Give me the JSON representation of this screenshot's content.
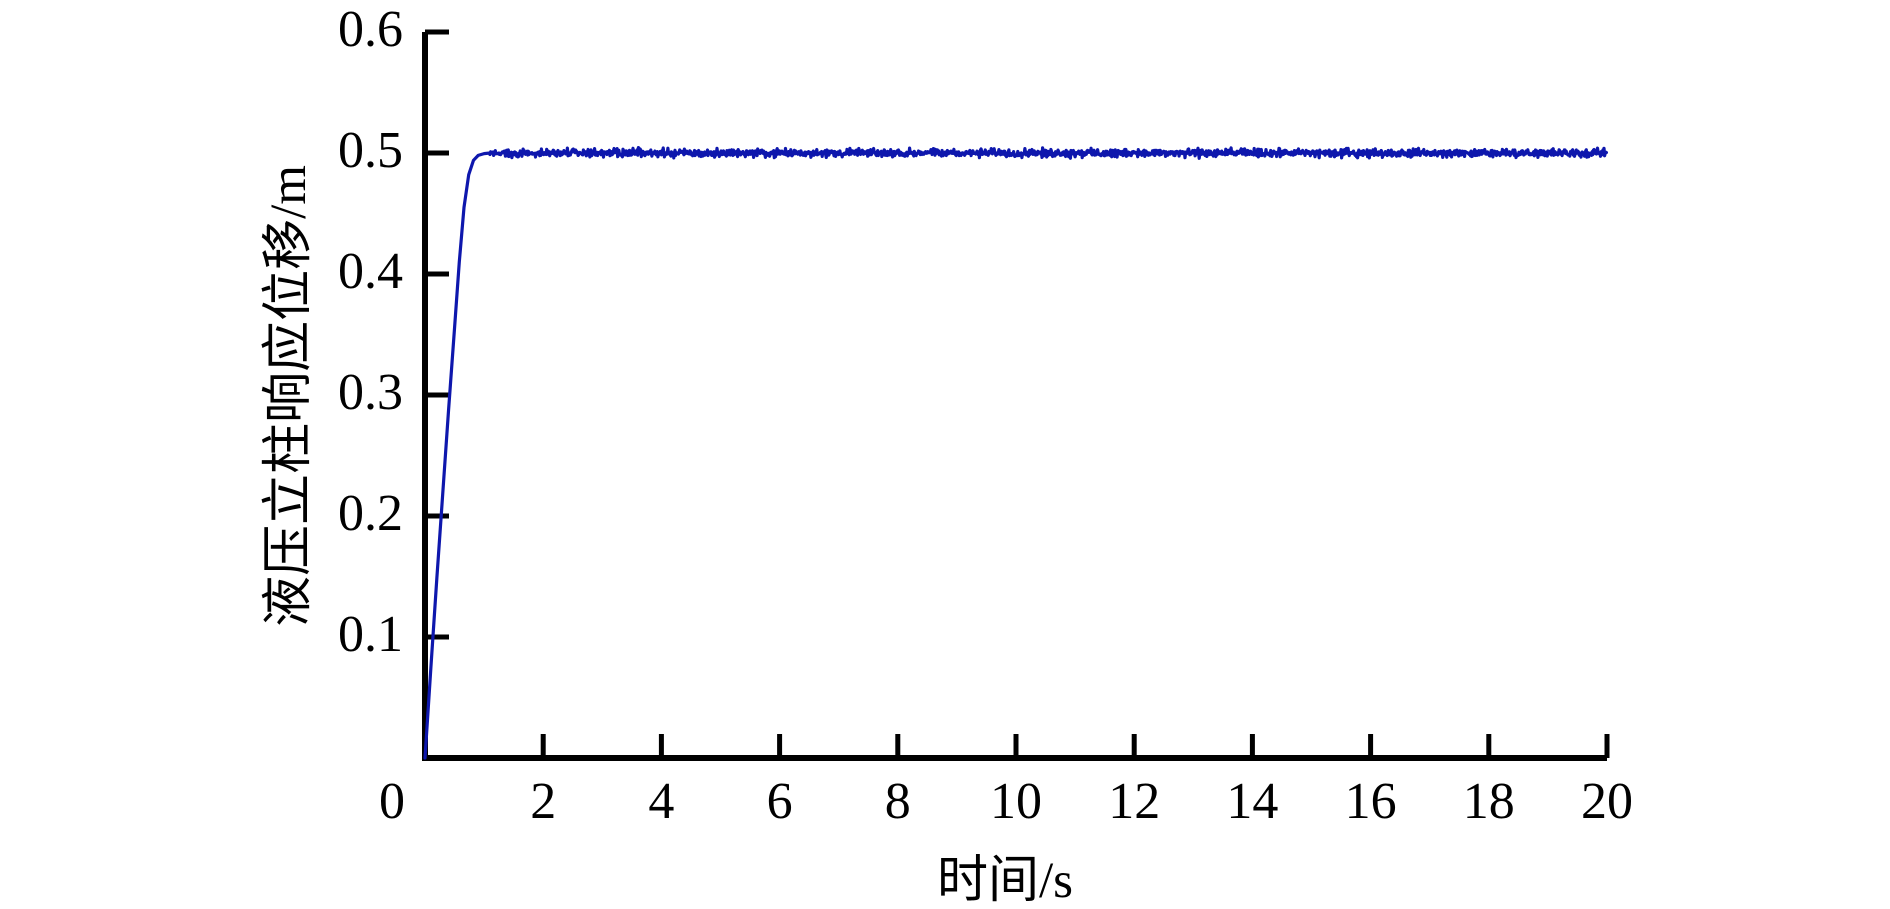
{
  "figure": {
    "background": "#ffffff",
    "axis_color": "#000000"
  },
  "chart_data": {
    "type": "line",
    "title": "",
    "xlabel": "时间/s",
    "ylabel": "液压立柱响应位移/m",
    "xlim": [
      0,
      20
    ],
    "ylim": [
      0,
      0.6
    ],
    "xticks": [
      0,
      2,
      4,
      6,
      8,
      10,
      12,
      14,
      16,
      18,
      20
    ],
    "yticks": [
      0.1,
      0.2,
      0.3,
      0.4,
      0.5,
      0.6
    ],
    "xtick_labels": [
      "0",
      "2",
      "4",
      "6",
      "8",
      "10",
      "12",
      "14",
      "16",
      "18",
      "20"
    ],
    "ytick_labels": [
      "0.1",
      "0.2",
      "0.3",
      "0.4",
      "0.5",
      "0.6"
    ],
    "grid": false,
    "legend": null,
    "series": [
      {
        "name": "液压立柱响应位移",
        "color": "#0e17ad",
        "rise_points": [
          [
            0,
            0
          ],
          [
            0.1,
            0.075
          ],
          [
            0.2,
            0.148
          ],
          [
            0.3,
            0.218
          ],
          [
            0.4,
            0.288
          ],
          [
            0.5,
            0.356
          ],
          [
            0.58,
            0.41
          ],
          [
            0.66,
            0.455
          ],
          [
            0.74,
            0.482
          ],
          [
            0.82,
            0.494
          ],
          [
            0.9,
            0.498
          ],
          [
            1.0,
            0.4995
          ],
          [
            1.1,
            0.5
          ]
        ],
        "steady_value": 0.5,
        "steady_start": 1.1,
        "steady_end": 20,
        "noise_amplitude": 0.0032
      }
    ]
  }
}
